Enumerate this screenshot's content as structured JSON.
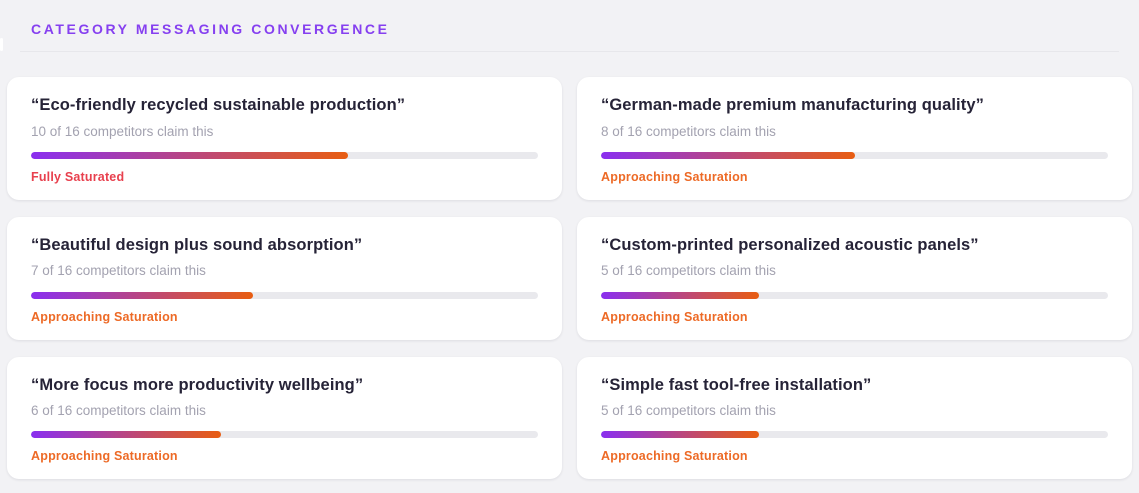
{
  "header": {
    "title": "CATEGORY MESSAGING CONVERGENCE"
  },
  "theme": {
    "accent": "#8640f0",
    "page_bg": "#f2f2f5",
    "card_bg": "#ffffff",
    "title_color": "#262337",
    "subtitle_color": "#a3a2b0",
    "bar_track": "#e9e9ed",
    "bar_gradient_start": "#8a2ff0",
    "bar_gradient_end": "#e85d11",
    "status_saturated_color": "#e8404e",
    "status_approaching_color": "#ed6a26"
  },
  "cards": [
    {
      "quote": "“Eco-friendly recycled sustainable production”",
      "claim_text": "10 of 16 competitors claim this",
      "claims": 10,
      "total_competitors": 16,
      "fill_percent": 62.5,
      "status": "Fully Saturated",
      "status_type": "saturated"
    },
    {
      "quote": "“German-made premium manufacturing quality”",
      "claim_text": "8 of 16 competitors claim this",
      "claims": 8,
      "total_competitors": 16,
      "fill_percent": 50,
      "status": "Approaching Saturation",
      "status_type": "approaching"
    },
    {
      "quote": "“Beautiful design plus sound absorption”",
      "claim_text": "7 of 16 competitors claim this",
      "claims": 7,
      "total_competitors": 16,
      "fill_percent": 43.75,
      "status": "Approaching Saturation",
      "status_type": "approaching"
    },
    {
      "quote": "“Custom-printed personalized acoustic panels”",
      "claim_text": "5 of 16 competitors claim this",
      "claims": 5,
      "total_competitors": 16,
      "fill_percent": 31.25,
      "status": "Approaching Saturation",
      "status_type": "approaching"
    },
    {
      "quote": "“More focus more productivity wellbeing”",
      "claim_text": "6 of 16 competitors claim this",
      "claims": 6,
      "total_competitors": 16,
      "fill_percent": 37.5,
      "status": "Approaching Saturation",
      "status_type": "approaching"
    },
    {
      "quote": "“Simple fast tool-free installation”",
      "claim_text": "5 of 16 competitors claim this",
      "claims": 5,
      "total_competitors": 16,
      "fill_percent": 31.25,
      "status": "Approaching Saturation",
      "status_type": "approaching"
    }
  ]
}
